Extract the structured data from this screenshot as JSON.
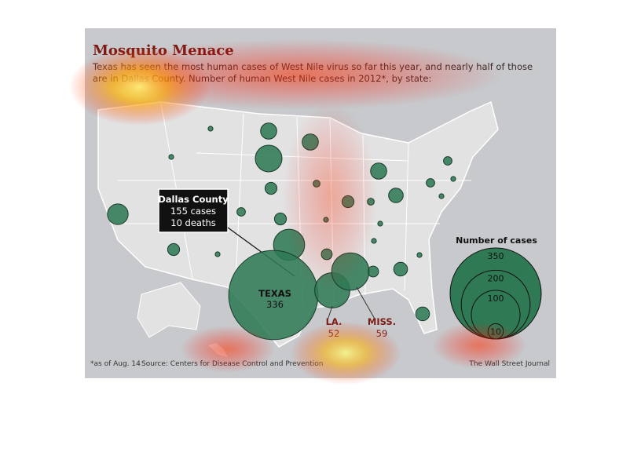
{
  "header": {
    "title": "Mosquito Menace",
    "subtitle_lines": [
      "Texas has seen the most human cases of West Nile virus so far this year, and nearly half of those",
      "are in Dallas County. Number of human West Nile cases in 2012*, by state:"
    ]
  },
  "callout": {
    "lines": [
      "Dallas County",
      "155 cases",
      "10 deaths"
    ]
  },
  "labeled_states": [
    {
      "label": "TEXAS",
      "cases": 336
    },
    {
      "label": "LA.",
      "cases": 52
    },
    {
      "label": "MISS.",
      "cases": 59
    }
  ],
  "other_states_cases": [
    18,
    1,
    1,
    11,
    30,
    11,
    6,
    2,
    3,
    6,
    41,
    6,
    1,
    11,
    2,
    9,
    6,
    1,
    1,
    5,
    1,
    5,
    8,
    1,
    8,
    3,
    3,
    1,
    1
  ],
  "legend": {
    "title": "Number of cases",
    "values": [
      350,
      200,
      100,
      10
    ]
  },
  "footer": {
    "note": "*as of Aug. 14",
    "source": "Source: Centers for Disease Control and Prevention",
    "credit": "The Wall Street Journal"
  }
}
